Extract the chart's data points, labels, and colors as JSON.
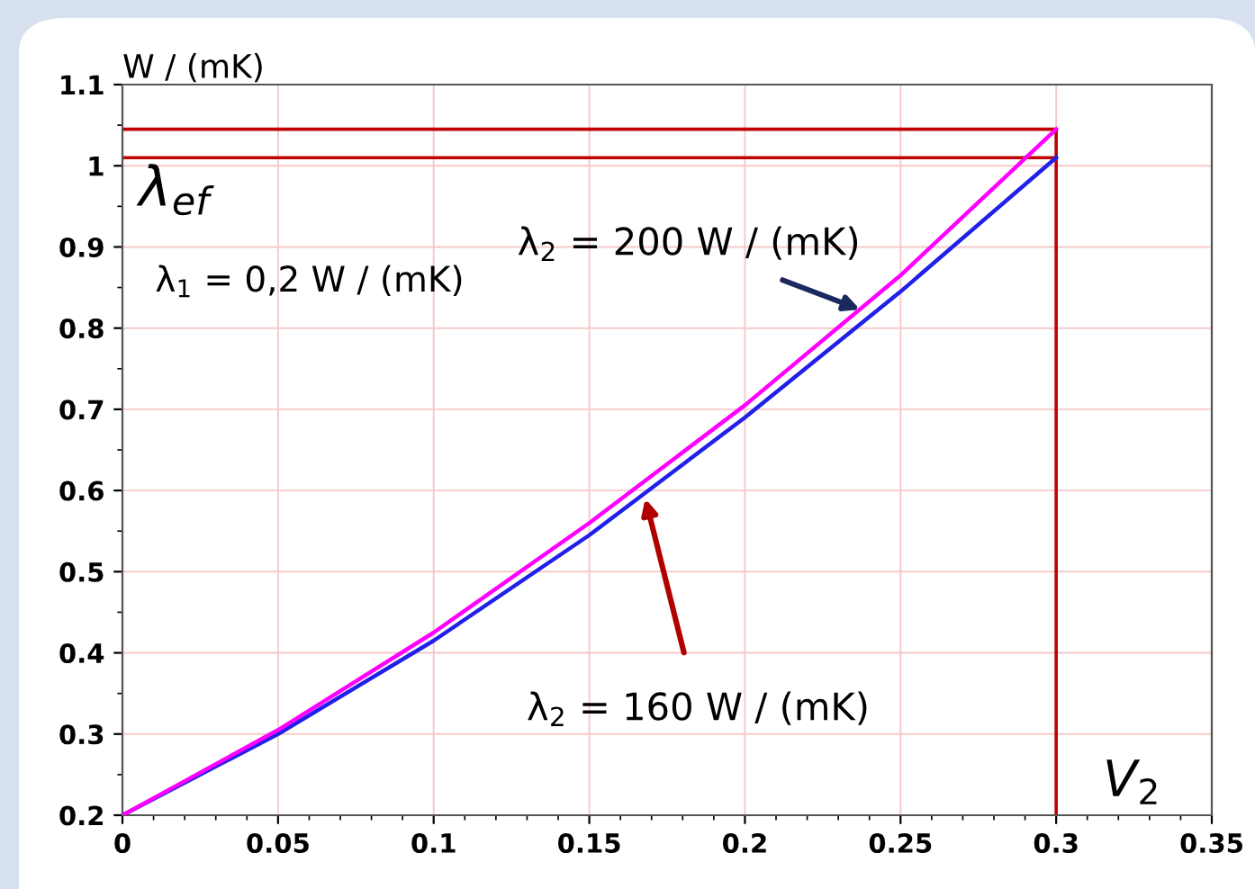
{
  "chart_data": {
    "type": "line",
    "ylabel": "W / (mK)",
    "x": [
      0,
      0.05,
      0.1,
      0.15,
      0.2,
      0.25,
      0.3
    ],
    "series": [
      {
        "color": "#2020e8",
        "values": [
          0.2,
          0.3,
          0.415,
          0.545,
          0.69,
          0.845,
          1.01
        ]
      },
      {
        "color": "#ff00ff",
        "values": [
          0.2,
          0.305,
          0.425,
          0.56,
          0.705,
          0.865,
          1.045
        ]
      }
    ],
    "xlim": [
      0,
      0.35
    ],
    "xticks": [
      0,
      0.05,
      0.1,
      0.15,
      0.2,
      0.25,
      0.3,
      0.35
    ],
    "ylim": [
      0.2,
      1.1
    ],
    "yticks": [
      0.2,
      0.3,
      0.4,
      0.5,
      0.6,
      0.7,
      0.8,
      0.9,
      1,
      1.1
    ],
    "grid": true,
    "marker": "none",
    "line_style": "solid",
    "ref_lines": [
      {
        "axis": "y",
        "value": 1.045,
        "color": "#c00000"
      },
      {
        "axis": "y",
        "value": 1.01,
        "color": "#c00000"
      },
      {
        "axis": "x",
        "value": 0.3,
        "color": "#c00000"
      }
    ],
    "annotations": [
      "λ$_{ef}$",
      "λ$_{1}$ = 0,2 W / (mK)",
      {
        "text": "λ$_{2}$ = 200 W / (mK)",
        "x": 0.237,
        "y": 0.823
      },
      {
        "text": "λ$_{2}$ = 160 W / (mK)",
        "x": 0.168,
        "y": 0.59
      },
      "V$_{2}$"
    ]
  }
}
